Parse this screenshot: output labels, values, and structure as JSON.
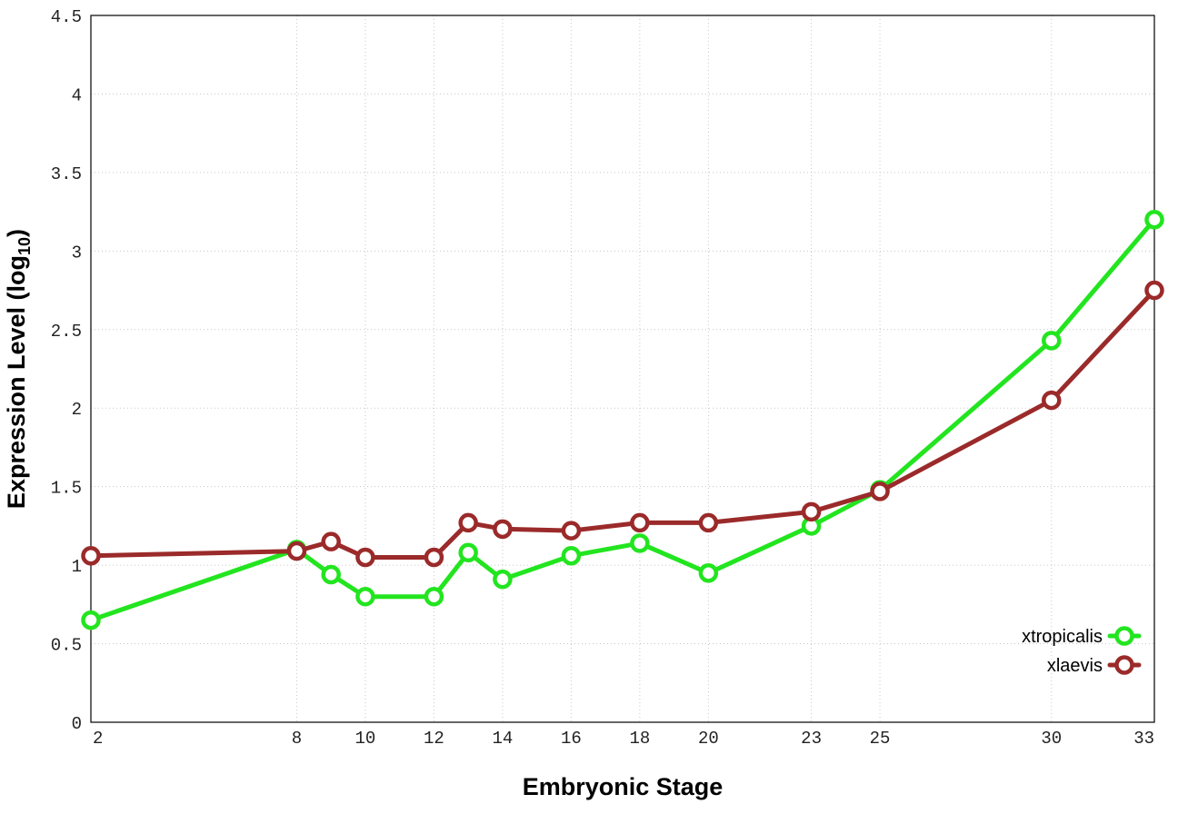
{
  "chart_data": {
    "type": "line",
    "title": "",
    "xlabel": "Embryonic Stage",
    "ylabel": {
      "main": "Expression Level (log",
      "sub": "10",
      "close": ")"
    },
    "x_tick_labels": [
      "2",
      "8",
      "10",
      "12",
      "14",
      "16",
      "18",
      "20",
      "23",
      "25",
      "30",
      "33"
    ],
    "y_ticks": [
      0,
      0.5,
      1,
      1.5,
      2,
      2.5,
      3,
      3.5,
      4,
      4.5
    ],
    "y_tick_labels": [
      "0",
      "0.5",
      "1",
      "1.5",
      "2",
      "2.5",
      "3",
      "3.5",
      "4",
      "4.5"
    ],
    "xlim": [
      2,
      33
    ],
    "ylim": [
      0,
      4.5
    ],
    "grid": true,
    "legend_position": "bottom-right",
    "series": [
      {
        "name": "xtropicalis",
        "color": "#22e51f",
        "x": [
          2,
          8,
          9,
          10,
          12,
          13,
          14,
          16,
          18,
          20,
          23,
          25,
          30,
          33
        ],
        "values": [
          0.65,
          1.1,
          0.94,
          0.8,
          0.8,
          1.08,
          0.91,
          1.06,
          1.14,
          0.95,
          1.25,
          1.48,
          2.43,
          3.2
        ]
      },
      {
        "name": "xlaevis",
        "color": "#9b2a2a",
        "x": [
          2,
          8,
          9,
          10,
          12,
          13,
          14,
          16,
          18,
          20,
          23,
          25,
          30,
          33
        ],
        "values": [
          1.06,
          1.09,
          1.15,
          1.05,
          1.05,
          1.27,
          1.23,
          1.22,
          1.27,
          1.27,
          1.34,
          1.47,
          2.05,
          2.75
        ]
      }
    ]
  }
}
